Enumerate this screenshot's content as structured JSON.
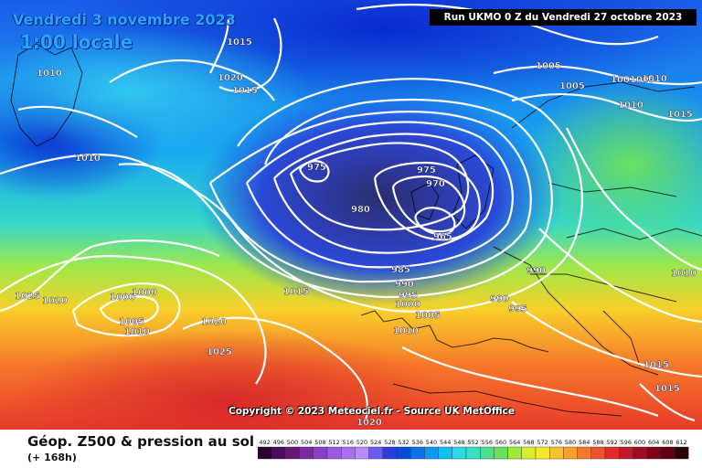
{
  "header": {
    "date_text": "Vendredi 3 novembre 2023",
    "time_text": "1:00 locale",
    "run_text": "Run UKMO 0 Z du Vendredi 27 octobre 2023"
  },
  "footer": {
    "title": "Géop. Z500 & pression au sol",
    "subtitle": "(+ 168h)"
  },
  "copyright": "Copyright © 2023 Meteociel.fr - Source UK MetOffice",
  "legend": {
    "ticks": [
      "492",
      "496",
      "500",
      "504",
      "508",
      "512",
      "516",
      "520",
      "524",
      "528",
      "532",
      "536",
      "540",
      "544",
      "548",
      "552",
      "556",
      "560",
      "564",
      "568",
      "572",
      "576",
      "580",
      "584",
      "588",
      "592",
      "596",
      "600",
      "604",
      "608",
      "612"
    ],
    "colors": [
      "#2a0030",
      "#4b0a5a",
      "#6a1478",
      "#7a2aa0",
      "#8a3fc8",
      "#9a5ae0",
      "#aa6ef0",
      "#b88cf8",
      "#6a5cf0",
      "#2a3ee0",
      "#0a4ad8",
      "#0a72e8",
      "#0a98f0",
      "#12bfef",
      "#2ad8e8",
      "#36e0c0",
      "#4ae090",
      "#6ae060",
      "#a0e83a",
      "#d8ee2a",
      "#f6e82a",
      "#f8c42a",
      "#f8a02a",
      "#f6782a",
      "#f0502a",
      "#e02a2a",
      "#c01a2a",
      "#a00a22",
      "#80001a",
      "#600012",
      "#300008"
    ]
  },
  "isobar_labels": [
    "1015",
    "1010",
    "1020",
    "1015",
    "1005",
    "1010",
    "1010",
    "1005",
    "1001005",
    "1010",
    "1015",
    "975",
    "975",
    "970",
    "980",
    "965",
    "990",
    "985",
    "990",
    "995",
    "1000",
    "990",
    "995",
    "1005",
    "1010",
    "1015",
    "1025",
    "1020",
    "1000",
    "1000",
    "1005",
    "1010",
    "1020",
    "1025",
    "1010",
    "1015",
    "1015",
    "1020"
  ],
  "colors": {
    "deep_low": "#2a2f6e",
    "low": "#3a4ad8",
    "blue": "#1a5ee8",
    "cyan": "#18b8f0",
    "green": "#3ed6a0",
    "yellow": "#d8ee2a",
    "orange": "#f8a02a",
    "red": "#e83a2a"
  }
}
